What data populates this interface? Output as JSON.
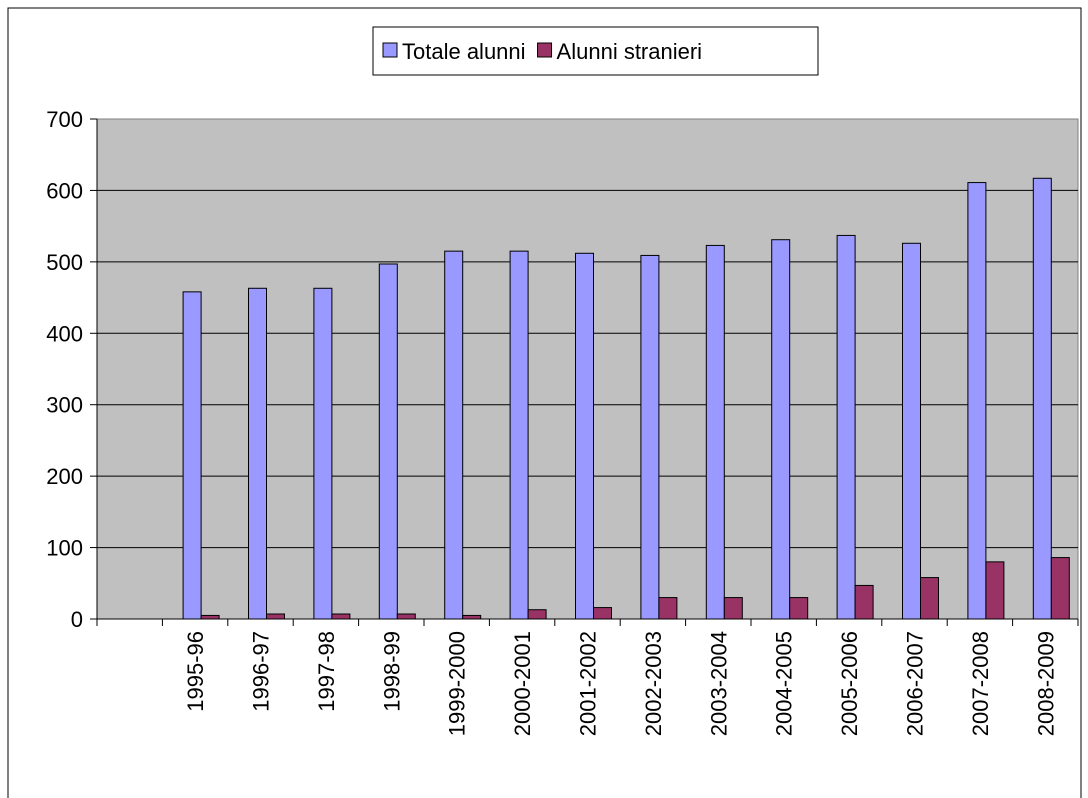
{
  "chart_data": {
    "type": "bar",
    "categories": [
      null,
      "1995-96",
      "1996-97",
      "1997-98",
      "1998-99",
      "1999-2000",
      "2000-2001",
      "2001-2002",
      "2002-2003",
      "2003-2004",
      "2004-2005",
      "2005-2006",
      "2006-2007",
      "2007-2008",
      "2008-2009"
    ],
    "series": [
      {
        "name": "Totale alunni",
        "color": "#9999ff",
        "values": [
          null,
          458,
          463,
          463,
          497,
          515,
          515,
          512,
          509,
          523,
          531,
          537,
          526,
          611,
          617
        ]
      },
      {
        "name": "Alunni stranieri",
        "color": "#993366",
        "values": [
          null,
          5,
          7,
          7,
          7,
          5,
          13,
          16,
          30,
          30,
          30,
          47,
          58,
          80,
          86
        ]
      }
    ],
    "ylim": [
      0,
      700
    ],
    "yticks": [
      0,
      100,
      200,
      300,
      400,
      500,
      600,
      700
    ],
    "grid": true,
    "legend": "top"
  }
}
